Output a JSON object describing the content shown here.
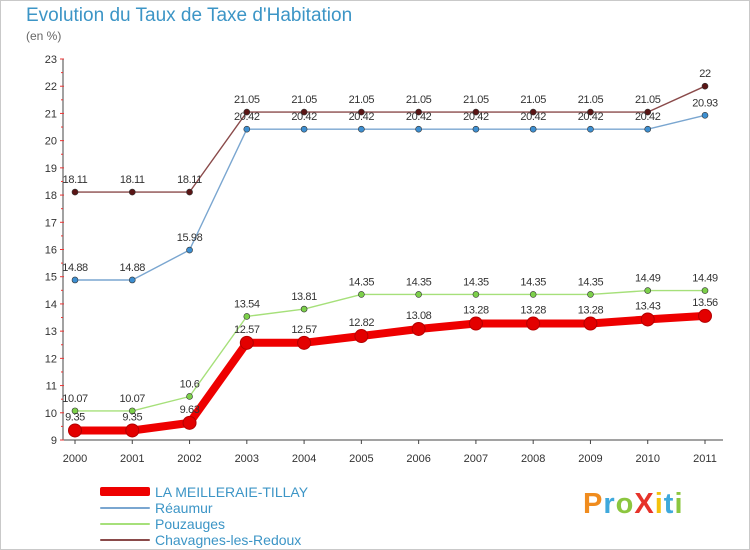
{
  "title": "Evolution du Taux de Taxe d'Habitation",
  "subtitle": "(en %)",
  "logo": {
    "text": "ProXiti",
    "colors": [
      "#f08c1e",
      "#3fa9dc",
      "#8cc63f",
      "#e6332a",
      "#f4c20d",
      "#3fa9dc",
      "#8cc63f"
    ]
  },
  "chart_data": {
    "type": "line",
    "title": "Evolution du Taux de Taxe d'Habitation",
    "ylabel": "(en %)",
    "xlabel": "",
    "x": [
      "2000",
      "2001",
      "2002",
      "2003",
      "2004",
      "2005",
      "2006",
      "2007",
      "2008",
      "2009",
      "2010",
      "2011"
    ],
    "ylim": [
      9,
      23
    ],
    "yticks": [
      "9",
      "10",
      "11",
      "12",
      "13",
      "14",
      "15",
      "16",
      "17",
      "18",
      "19",
      "20",
      "21",
      "22",
      "23"
    ],
    "grid": false,
    "legend_position": "bottom-left",
    "series": [
      {
        "name": "LA MEILLERAIE-TILLAY",
        "color": "#ee0000",
        "values": [
          9.35,
          9.35,
          9.63,
          12.57,
          12.57,
          12.82,
          13.08,
          13.28,
          13.28,
          13.28,
          13.43,
          13.56
        ],
        "labels": [
          "9.35",
          "9.35",
          "9.63",
          "12.57",
          "12.57",
          "12.82",
          "13.08",
          "13.28",
          "13.28",
          "13.28",
          "13.43",
          "13.56"
        ]
      },
      {
        "name": "Réaumur",
        "color": "#7aa6d0",
        "values": [
          14.88,
          14.88,
          15.98,
          20.42,
          20.42,
          20.42,
          20.42,
          20.42,
          20.42,
          20.42,
          20.42,
          20.93
        ],
        "labels": [
          "14.88",
          "14.88",
          "15.98",
          "20.42",
          "20.42",
          "20.42",
          "20.42",
          "20.42",
          "20.42",
          "20.42",
          "20.42",
          "20.93"
        ]
      },
      {
        "name": "Pouzauges",
        "color": "#a6e07a",
        "values": [
          10.07,
          10.07,
          10.6,
          13.54,
          13.81,
          14.35,
          14.35,
          14.35,
          14.35,
          14.35,
          14.49,
          14.49
        ],
        "labels": [
          "10.07",
          "10.07",
          "10.6",
          "13.54",
          "13.81",
          "14.35",
          "14.35",
          "14.35",
          "14.35",
          "14.35",
          "14.49",
          "14.49"
        ]
      },
      {
        "name": "Chavagnes-les-Redoux",
        "color": "#8a4a4a",
        "values": [
          18.11,
          18.11,
          18.11,
          21.05,
          21.05,
          21.05,
          21.05,
          21.05,
          21.05,
          21.05,
          21.05,
          22
        ],
        "labels": [
          "18.11",
          "18.11",
          "18.11",
          "21.05",
          "21.05",
          "21.05",
          "21.05",
          "21.05",
          "21.05",
          "21.05",
          "21.05",
          "22"
        ]
      }
    ]
  }
}
